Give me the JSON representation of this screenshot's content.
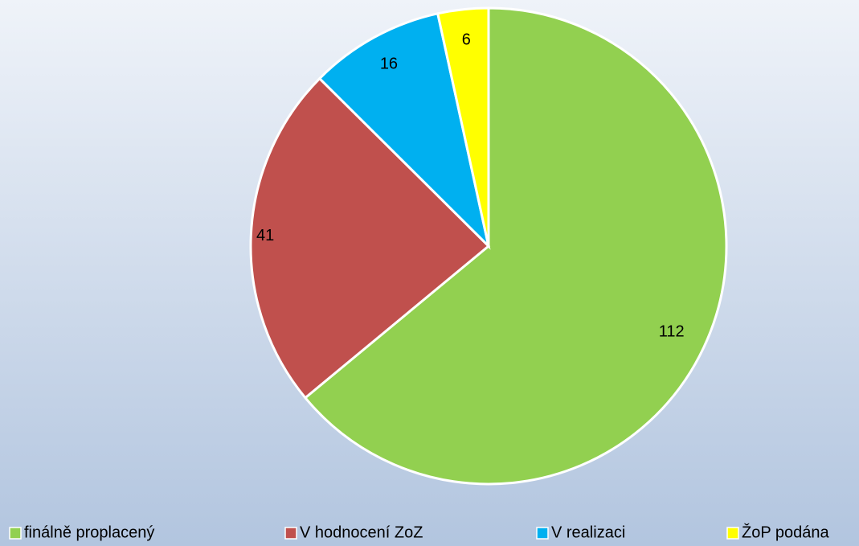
{
  "chart_data": {
    "type": "pie",
    "categories": [
      "finálně proplacený",
      "V hodnocení ZoZ",
      "V realizaci",
      "ŽoP podána"
    ],
    "values": [
      112,
      41,
      16,
      6
    ],
    "colors": [
      "#92d050",
      "#c0504d",
      "#00b0f0",
      "#ffff00"
    ],
    "legend": "bottom"
  }
}
